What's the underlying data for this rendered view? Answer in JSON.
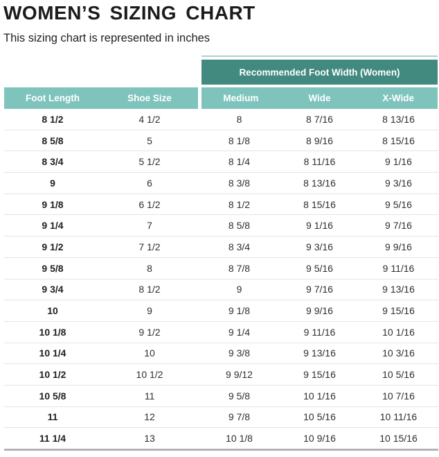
{
  "page": {
    "title": "WOMEN’S SIZING CHART",
    "subtitle": "This sizing chart is represented in inches"
  },
  "colors": {
    "banner_teal": "#42897f",
    "header_teal": "#7ec4bc",
    "accent_line": "#a9d3cd",
    "row_divider": "#e4e4e4",
    "bottom_bar": "#b3b3b3",
    "header_text": "#ffffff"
  },
  "chart_data": {
    "type": "table",
    "title": "WOMEN’S SIZING CHART",
    "subtitle": "This sizing chart is represented in inches",
    "units": "inches",
    "group_header": "Recommended Foot Width (Women)",
    "columns": [
      "Foot Length",
      "Shoe Size",
      "Medium",
      "Wide",
      "X-Wide"
    ],
    "rows": [
      [
        "8 1/2",
        "4 1/2",
        "8",
        "8 7/16",
        "8 13/16"
      ],
      [
        "8 5/8",
        "5",
        "8 1/8",
        "8 9/16",
        "8 15/16"
      ],
      [
        "8 3/4",
        "5 1/2",
        "8 1/4",
        "8 11/16",
        "9 1/16"
      ],
      [
        "9",
        "6",
        "8 3/8",
        "8 13/16",
        "9 3/16"
      ],
      [
        "9 1/8",
        "6 1/2",
        "8 1/2",
        "8 15/16",
        "9 5/16"
      ],
      [
        "9 1/4",
        "7",
        "8 5/8",
        "9 1/16",
        "9 7/16"
      ],
      [
        "9 1/2",
        "7 1/2",
        "8 3/4",
        "9 3/16",
        "9 9/16"
      ],
      [
        "9 5/8",
        "8",
        "8 7/8",
        "9 5/16",
        "9 11/16"
      ],
      [
        "9 3/4",
        "8 1/2",
        "9",
        "9 7/16",
        "9 13/16"
      ],
      [
        "10",
        "9",
        "9 1/8",
        "9 9/16",
        "9 15/16"
      ],
      [
        "10 1/8",
        "9 1/2",
        "9 1/4",
        "9 11/16",
        "10 1/16"
      ],
      [
        "10 1/4",
        "10",
        "9 3/8",
        "9 13/16",
        "10 3/16"
      ],
      [
        "10 1/2",
        "10 1/2",
        "9 9/12",
        "9 15/16",
        "10 5/16"
      ],
      [
        "10 5/8",
        "11",
        "9 5/8",
        "10 1/16",
        "10 7/16"
      ],
      [
        "11",
        "12",
        "9 7/8",
        "10 5/16",
        "10 11/16"
      ],
      [
        "11 1/4",
        "13",
        "10 1/8",
        "10 9/16",
        "10 15/16"
      ]
    ]
  }
}
